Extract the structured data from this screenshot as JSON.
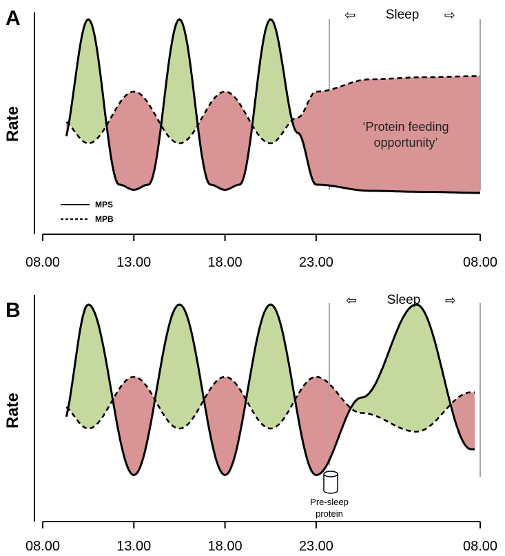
{
  "chart_data": [
    {
      "type": "line",
      "panel": "A",
      "ylabel": "Rate",
      "xlabel": "",
      "x_ticks": [
        "08.00",
        "13.00",
        "18.00",
        "23.00",
        "08.00"
      ],
      "series": [
        {
          "name": "MPS",
          "style": "solid",
          "x_hours": [
            9,
            10.5,
            12.2,
            13,
            13.8,
            15.5,
            17.2,
            18,
            18.8,
            20.5,
            22,
            23,
            26,
            29,
            32
          ],
          "values": [
            -0.25,
            1.0,
            -0.6,
            -0.65,
            -0.6,
            1.0,
            -0.6,
            -0.65,
            -0.6,
            1.0,
            -0.1,
            -0.6,
            -0.66,
            -0.67,
            -0.68
          ]
        },
        {
          "name": "MPB",
          "style": "dashed",
          "x_hours": [
            9,
            10.5,
            13,
            15.5,
            18,
            20.5,
            22,
            23,
            26,
            29,
            32
          ],
          "values": [
            0.03,
            -0.2,
            0.3,
            -0.2,
            0.3,
            -0.2,
            0.05,
            0.3,
            0.42,
            0.44,
            0.45
          ]
        }
      ],
      "shading": {
        "green": "MPS above MPB",
        "red": "MPS below MPB"
      },
      "sleep": {
        "label": "Sleep",
        "start": "23.00",
        "end": "08.00",
        "arrows": [
          "⇦",
          "⇨"
        ]
      },
      "annotations": [
        "‘Protein feeding",
        "opportunity’"
      ],
      "legend": {
        "placement": "bottom-left",
        "entries": [
          "MPS",
          "MPB"
        ]
      },
      "colors": {
        "green": "#c5d99f",
        "red": "#d99595",
        "marker_line": "#a6a6a6"
      }
    },
    {
      "type": "line",
      "panel": "B",
      "ylabel": "Rate",
      "xlabel": "",
      "x_ticks": [
        "08.00",
        "13.00",
        "18.00",
        "23.00",
        "08.00"
      ],
      "series": [
        {
          "name": "MPS",
          "style": "solid",
          "x_hours": [
            9,
            10.5,
            13,
            15.5,
            18,
            20.5,
            23,
            25.5,
            28.5,
            31.5
          ],
          "values": [
            -0.2,
            1.0,
            -0.65,
            1.0,
            -0.65,
            1.0,
            -0.65,
            0.1,
            1.0,
            -0.4
          ]
        },
        {
          "name": "MPB",
          "style": "dashed",
          "x_hours": [
            9,
            10.5,
            13,
            15.5,
            18,
            20.5,
            23,
            25.5,
            28.5,
            31.5
          ],
          "values": [
            0.03,
            -0.2,
            0.3,
            -0.2,
            0.3,
            -0.2,
            0.3,
            -0.05,
            -0.23,
            0.15
          ]
        }
      ],
      "shading": {
        "green": "MPS above MPB",
        "red": "MPS below MPB"
      },
      "sleep": {
        "label": "Sleep",
        "start": "23.00",
        "end": "08.00",
        "arrows": [
          "⇦",
          "⇨"
        ]
      },
      "annotations": [
        "Pre-sleep",
        "protein"
      ],
      "colors": {
        "green": "#c5d99f",
        "red": "#d99595",
        "marker_line": "#a6a6a6"
      }
    }
  ]
}
